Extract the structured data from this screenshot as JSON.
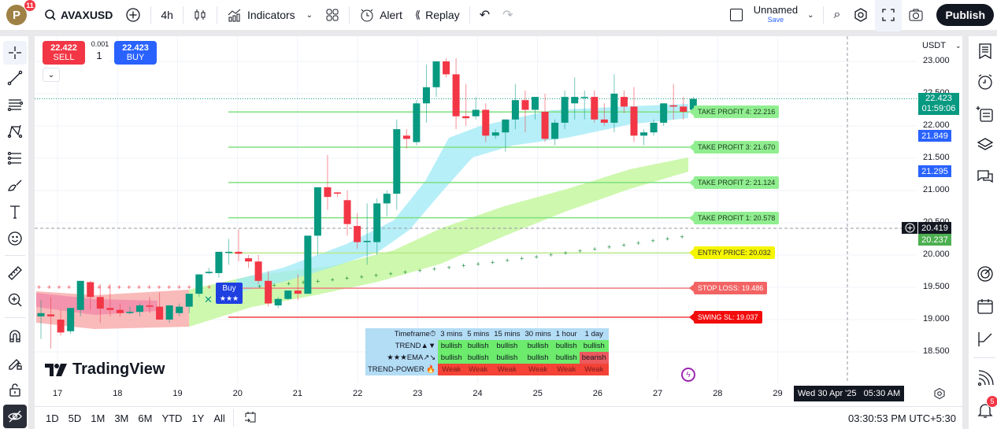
{
  "topbar": {
    "avatar_letter": "P",
    "avatar_badge": "11",
    "symbol": "AVAXUSD",
    "interval": "4h",
    "indicators_label": "Indicators",
    "alert_label": "Alert",
    "replay_label": "Replay",
    "layout_name": "Unnamed",
    "layout_save": "Save",
    "publish_label": "Publish"
  },
  "trade": {
    "sell_price": "22.422",
    "sell_label": "SELL",
    "buy_price": "22.423",
    "buy_label": "BUY",
    "spread": "0.001",
    "quantity": "1"
  },
  "price_axis": {
    "currency": "USDT",
    "ticks": [
      "23.000",
      "22.500",
      "22.000",
      "21.500",
      "21.000",
      "20.500",
      "20.000",
      "19.500",
      "19.000",
      "18.500"
    ],
    "tick_values": [
      23.0,
      22.5,
      22.0,
      21.5,
      21.0,
      20.5,
      20.0,
      19.5,
      19.0,
      18.5
    ],
    "last_price": "22.423",
    "countdown": "01:59:06",
    "blue_label_1": "21.849",
    "blue_label_2": "21.295",
    "crosshair_price": "20.419",
    "green_label": "20.237"
  },
  "levels": [
    {
      "label": "TAKE PROFIT 4: 22.216",
      "value": 22.216,
      "bg": "#90ee90",
      "line": "#7ee07e",
      "text": "#1b3a1b"
    },
    {
      "label": "TAKE PROFIT 3: 21.670",
      "value": 21.67,
      "bg": "#90ee90",
      "line": "#7ee07e",
      "text": "#1b3a1b"
    },
    {
      "label": "TAKE PROFIT 2: 21.124",
      "value": 21.124,
      "bg": "#90ee90",
      "line": "#7ee07e",
      "text": "#1b3a1b"
    },
    {
      "label": "TAKE PROFIT 1: 20.578",
      "value": 20.578,
      "bg": "#90ee90",
      "line": "#7ee07e",
      "text": "#1b3a1b"
    },
    {
      "label": "ENTRY PRICE: 20.032",
      "value": 20.032,
      "bg": "#f5f500",
      "line": "#b8e986",
      "text": "#333"
    },
    {
      "label": "STOP LOSS: 19.486",
      "value": 19.486,
      "bg": "#f26363",
      "line": "#f08080",
      "text": "#fff"
    },
    {
      "label": "SWING SL: 19.037",
      "value": 19.037,
      "bg": "#f20d0d",
      "line": "#f04040",
      "text": "#fff"
    }
  ],
  "buy_signal": {
    "label": "Buy",
    "stars": "★★★"
  },
  "signal_table": {
    "headers": [
      "Timeframe⏱",
      "3 mins",
      "5 mins",
      "15 mins",
      "30 mins",
      "1 hour",
      "1 day"
    ],
    "rows": [
      {
        "name": "TREND▲▼",
        "cells": [
          "bullish",
          "bullish",
          "bullish",
          "bullish",
          "bullish",
          "bullish"
        ]
      },
      {
        "name": "★★★EMA↗↘",
        "cells": [
          "bullish",
          "bullish",
          "bullish",
          "bullish",
          "bullish",
          "bearish"
        ]
      },
      {
        "name": "TREND-POWER 🔥",
        "cells": [
          "Weak",
          "Weak",
          "Weak",
          "Weak",
          "Weak",
          "Weak"
        ]
      }
    ]
  },
  "time_axis": {
    "ticks": [
      "17",
      "18",
      "19",
      "20",
      "21",
      "22",
      "23",
      "24",
      "25",
      "26",
      "27",
      "28",
      "29"
    ],
    "crosshair_time": "Wed 30 Apr '25   05:30 AM"
  },
  "bottombar": {
    "ranges": [
      "1D",
      "5D",
      "1M",
      "3M",
      "6M",
      "YTD",
      "1Y",
      "All"
    ],
    "clock": "03:30:53 PM UTC+5:30"
  },
  "watermark": "TradingView",
  "rightbar": {
    "notification_badge": "5"
  },
  "colors": {
    "up": "#089981",
    "down": "#f23645",
    "accent": "#2962ff"
  },
  "chart_data": {
    "type": "candlestick",
    "symbol": "AVAXUSD",
    "interval": "4h",
    "candles": [
      [
        19.05,
        19.3,
        18.7,
        19.1
      ],
      [
        19.08,
        19.35,
        18.55,
        19.05
      ],
      [
        19.0,
        19.15,
        18.75,
        18.8
      ],
      [
        18.82,
        19.15,
        18.78,
        19.18
      ],
      [
        19.15,
        19.55,
        19.05,
        19.6
      ],
      [
        19.58,
        19.6,
        19.15,
        19.35
      ],
      [
        19.35,
        19.55,
        18.95,
        19.17
      ],
      [
        19.18,
        19.55,
        19.05,
        19.15
      ],
      [
        19.15,
        19.25,
        19.05,
        19.1
      ],
      [
        19.1,
        19.2,
        19.08,
        19.12
      ],
      [
        19.12,
        19.25,
        19.05,
        19.22
      ],
      [
        19.22,
        19.35,
        19.1,
        19.2
      ],
      [
        19.2,
        19.42,
        19.0,
        19.0
      ],
      [
        19.0,
        19.22,
        18.95,
        19.22
      ],
      [
        19.1,
        19.25,
        19.05,
        19.2
      ],
      [
        19.2,
        19.4,
        19.1,
        19.4
      ],
      [
        19.4,
        19.7,
        19.35,
        19.7
      ],
      [
        19.72,
        19.8,
        19.7,
        19.74
      ],
      [
        19.72,
        20.0,
        19.65,
        20.05
      ],
      [
        20.05,
        20.25,
        19.85,
        20.05
      ],
      [
        20.05,
        20.4,
        19.9,
        20.02
      ],
      [
        19.95,
        20.0,
        19.8,
        19.9
      ],
      [
        19.9,
        20.0,
        19.55,
        19.6
      ],
      [
        19.6,
        19.75,
        19.2,
        19.25
      ],
      [
        19.22,
        19.35,
        19.18,
        19.32
      ],
      [
        19.32,
        19.45,
        19.3,
        19.45
      ],
      [
        19.45,
        19.7,
        19.3,
        19.4
      ],
      [
        19.4,
        20.2,
        19.4,
        20.3
      ],
      [
        20.3,
        21.05,
        20.0,
        21.05
      ],
      [
        21.05,
        21.55,
        20.7,
        20.9
      ],
      [
        20.97,
        20.98,
        20.9,
        20.95
      ],
      [
        20.85,
        21.0,
        20.3,
        20.48
      ],
      [
        20.45,
        20.65,
        20.1,
        20.2
      ],
      [
        20.2,
        20.8,
        19.85,
        20.22
      ],
      [
        20.2,
        20.88,
        20.0,
        20.8
      ],
      [
        20.8,
        21.0,
        20.6,
        20.95
      ],
      [
        20.95,
        22.1,
        20.7,
        21.95
      ],
      [
        21.85,
        21.95,
        21.65,
        21.8
      ],
      [
        21.75,
        22.4,
        21.7,
        22.35
      ],
      [
        22.35,
        22.95,
        22.05,
        22.6
      ],
      [
        22.6,
        23.0,
        22.45,
        23.0
      ],
      [
        23.0,
        23.05,
        22.75,
        22.8
      ],
      [
        22.8,
        23.05,
        21.95,
        22.15
      ],
      [
        22.15,
        22.65,
        22.0,
        22.12
      ],
      [
        22.15,
        22.45,
        22.1,
        22.25
      ],
      [
        22.25,
        22.35,
        21.75,
        21.85
      ],
      [
        21.85,
        21.95,
        21.8,
        21.9
      ],
      [
        21.9,
        22.1,
        21.6,
        22.1
      ],
      [
        22.1,
        22.65,
        21.95,
        22.4
      ],
      [
        22.4,
        22.55,
        21.9,
        22.25
      ],
      [
        22.25,
        22.35,
        22.1,
        22.45
      ],
      [
        22.22,
        22.5,
        21.75,
        21.8
      ],
      [
        21.8,
        22.1,
        21.7,
        22.05
      ],
      [
        22.05,
        22.55,
        21.95,
        22.45
      ],
      [
        22.35,
        22.75,
        22.1,
        22.45
      ],
      [
        22.45,
        22.55,
        22.1,
        22.45
      ],
      [
        22.45,
        22.55,
        22.05,
        22.1
      ],
      [
        22.1,
        22.35,
        22.0,
        22.05
      ],
      [
        22.05,
        22.8,
        21.9,
        22.5
      ],
      [
        22.45,
        22.55,
        22.2,
        22.3
      ],
      [
        22.3,
        22.6,
        21.75,
        21.85
      ],
      [
        21.85,
        21.95,
        21.7,
        21.9
      ],
      [
        21.9,
        22.1,
        21.85,
        22.05
      ],
      [
        22.05,
        22.35,
        22.0,
        22.35
      ],
      [
        22.32,
        22.65,
        22.1,
        22.3
      ],
      [
        22.3,
        22.45,
        22.1,
        22.22
      ],
      [
        22.25,
        22.45,
        22.2,
        22.42
      ]
    ],
    "x_ticks": [
      "17",
      "18",
      "19",
      "20",
      "21",
      "22",
      "23",
      "24",
      "25",
      "26",
      "27",
      "28",
      "29"
    ],
    "y_range": [
      18.4,
      23.15
    ]
  }
}
